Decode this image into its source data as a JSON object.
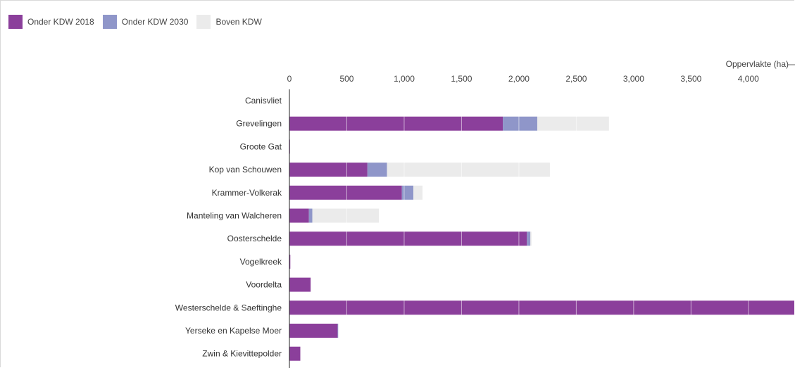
{
  "chart_data": {
    "type": "bar",
    "orientation": "horizontal",
    "stacked": true,
    "title": "",
    "xlabel": "Oppervlakte (ha)",
    "ylabel": "",
    "xlim": [
      0,
      4400
    ],
    "x_ticks": [
      0,
      500,
      1000,
      1500,
      2000,
      2500,
      3000,
      3500,
      4000
    ],
    "x_tick_labels": [
      "0",
      "500",
      "1,000",
      "1,500",
      "2,000",
      "2,500",
      "3,000",
      "3,500",
      "4,000"
    ],
    "grid": true,
    "legend_position": "top-left",
    "categories": [
      "Canisvliet",
      "Grevelingen",
      "Groote Gat",
      "Kop van Schouwen",
      "Krammer-Volkerak",
      "Manteling van Walcheren",
      "Oosterschelde",
      "Vogelkreek",
      "Voordelta",
      "Westerschelde & Saeftinghe",
      "Yerseke en Kapelse Moer",
      "Zwin & Kievittepolder"
    ],
    "series": [
      {
        "name": "Onder KDW 2018",
        "color": "#8b3f9b",
        "values": [
          2,
          1860,
          5,
          680,
          980,
          170,
          2070,
          8,
          185,
          4400,
          420,
          95
        ]
      },
      {
        "name": "Onder KDW 2030",
        "color": "#8f96c9",
        "values": [
          0,
          300,
          0,
          170,
          100,
          30,
          30,
          0,
          0,
          0,
          5,
          0
        ]
      },
      {
        "name": "Boven KDW",
        "color": "#ebebeb",
        "values": [
          0,
          625,
          0,
          1420,
          80,
          580,
          10,
          0,
          0,
          0,
          0,
          0
        ]
      }
    ]
  }
}
